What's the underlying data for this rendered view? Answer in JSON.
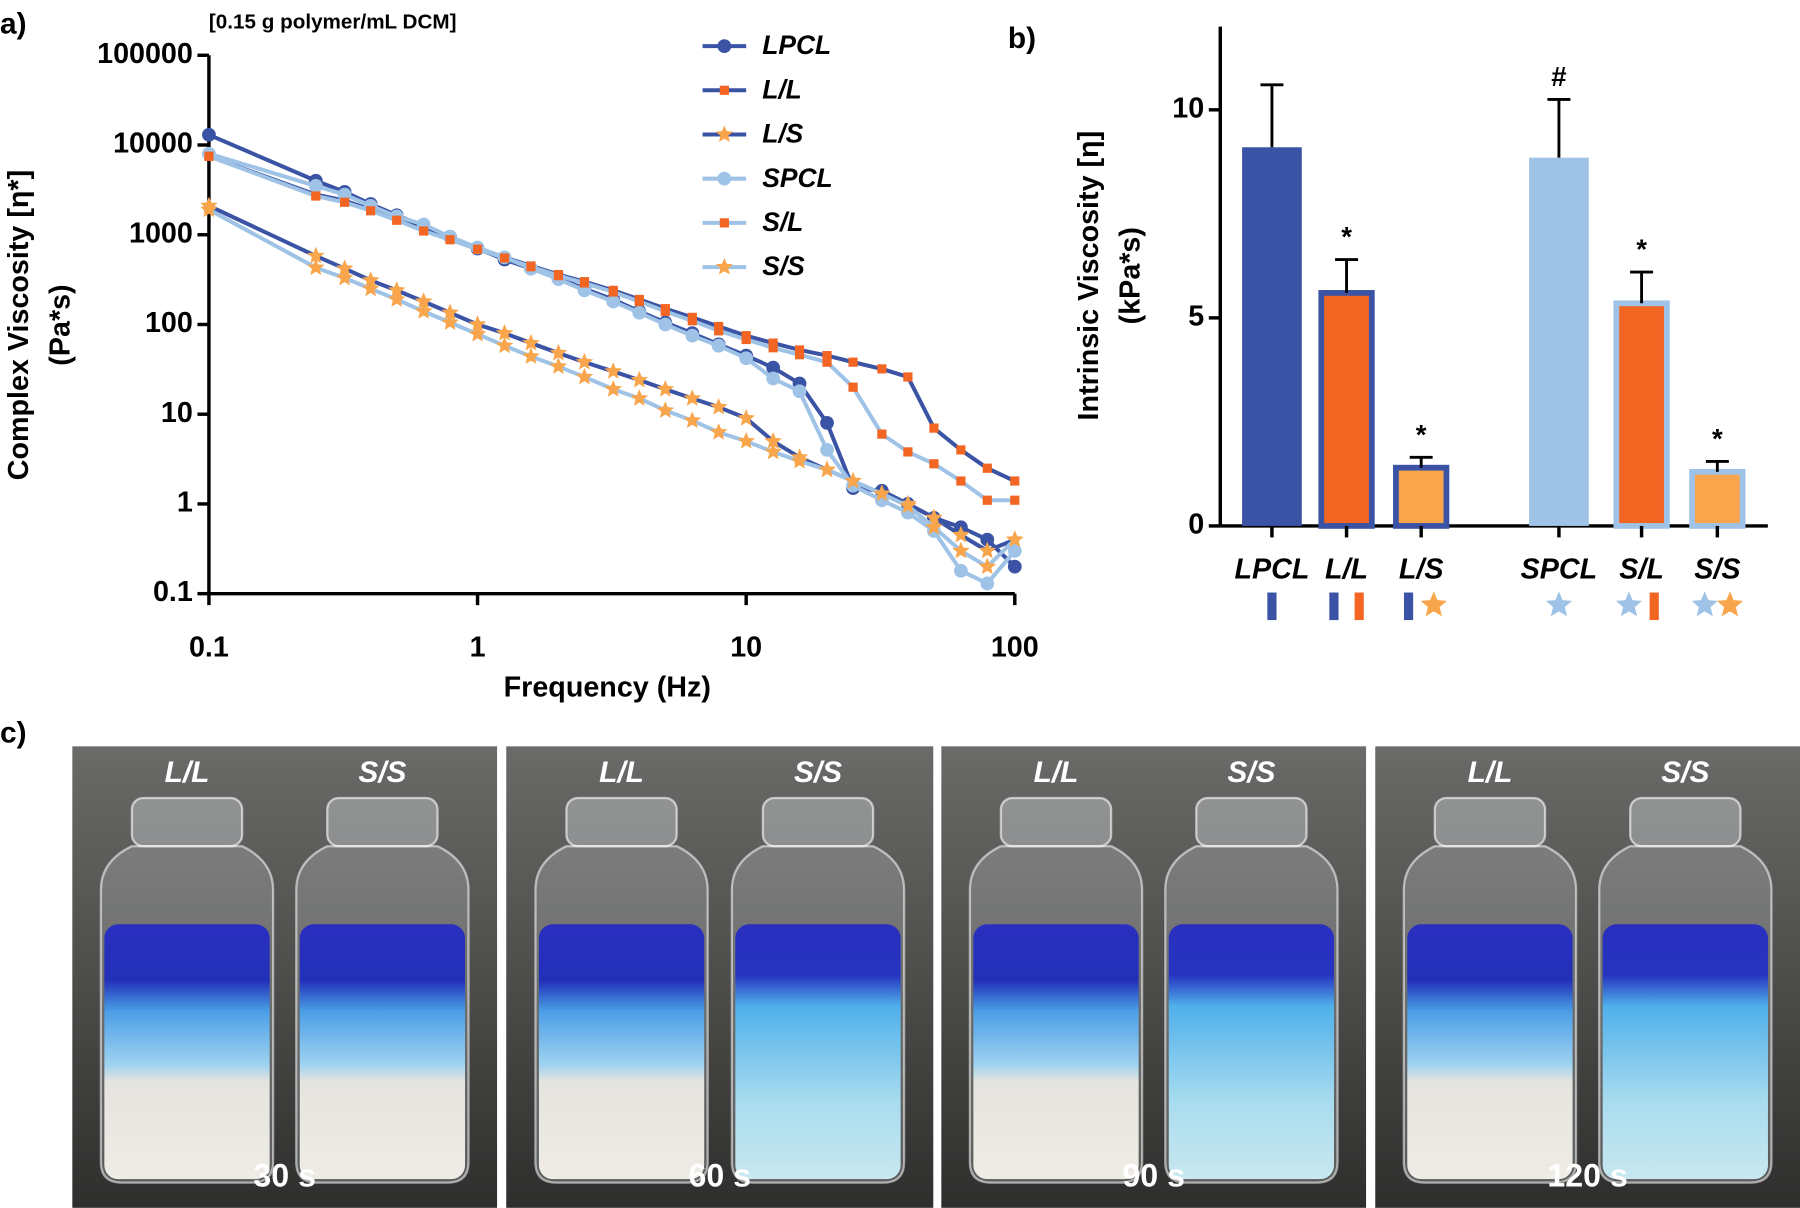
{
  "panel_labels": [
    "a)",
    "b)",
    "c)"
  ],
  "chart_data": [
    {
      "type": "line",
      "log_x": true,
      "log_y": true,
      "annotation": "[0.15 g polymer/mL DCM]",
      "xlabel": "Frequency (Hz)",
      "ylabel": [
        "Complex Viscosity [η*]",
        "(Pa*s)"
      ],
      "xlim": [
        0.1,
        100
      ],
      "ylim": [
        0.1,
        100000
      ],
      "xticks": [
        0.1,
        1,
        10,
        100
      ],
      "yticks": [
        0.1,
        1,
        10,
        100,
        1000,
        10000,
        100000
      ],
      "x": [
        0.1,
        0.25,
        0.32,
        0.4,
        0.5,
        0.63,
        0.79,
        1,
        1.26,
        1.58,
        2,
        2.5,
        3.2,
        4,
        5,
        6.3,
        7.9,
        10,
        12.6,
        15.8,
        20,
        25,
        32,
        40,
        50,
        63,
        79,
        100
      ],
      "series": [
        {
          "name": "LPCL",
          "color": "#3a53a4",
          "marker": "circle",
          "marker_color": "#3a53a4",
          "values": [
            13000,
            4000,
            3000,
            2200,
            1650,
            1250,
            950,
            700,
            530,
            420,
            330,
            250,
            190,
            140,
            105,
            80,
            60,
            45,
            33,
            22,
            8,
            1.5,
            1.4,
            1.0,
            0.7,
            0.55,
            0.4,
            0.2
          ]
        },
        {
          "name": "L/L",
          "color": "#3a53a4",
          "marker": "square",
          "marker_color": "#f26522",
          "values": [
            7500,
            2800,
            2400,
            1900,
            1500,
            1150,
            900,
            700,
            560,
            450,
            360,
            300,
            240,
            190,
            150,
            120,
            95,
            75,
            62,
            52,
            45,
            38,
            32,
            26,
            7,
            4,
            2.5,
            1.8
          ]
        },
        {
          "name": "L/S",
          "color": "#3a53a4",
          "marker": "star",
          "marker_color": "#f8a54b",
          "values": [
            2100,
            580,
            420,
            310,
            240,
            180,
            135,
            100,
            80,
            62,
            48,
            38,
            30,
            24,
            19,
            15,
            12,
            9,
            5,
            3.3,
            2.4,
            1.8,
            1.3,
            1.0,
            0.7,
            0.45,
            0.3,
            0.4
          ]
        },
        {
          "name": "SPCL",
          "color": "#9fc3e6",
          "marker": "circle",
          "marker_color": "#9fc3e6",
          "values": [
            8000,
            3500,
            2800,
            2100,
            1600,
            1300,
            950,
            720,
            560,
            420,
            320,
            240,
            180,
            135,
            100,
            75,
            58,
            42,
            25,
            18,
            4,
            1.6,
            1.1,
            0.8,
            0.5,
            0.18,
            0.13,
            0.3
          ]
        },
        {
          "name": "S/L",
          "color": "#9fc3e6",
          "marker": "square",
          "marker_color": "#f26522",
          "values": [
            7500,
            2700,
            2300,
            1850,
            1450,
            1100,
            880,
            690,
            550,
            440,
            350,
            290,
            230,
            180,
            140,
            110,
            85,
            68,
            55,
            46,
            38,
            20,
            6,
            3.8,
            2.8,
            1.8,
            1.1,
            1.1
          ]
        },
        {
          "name": "S/S",
          "color": "#9fc3e6",
          "marker": "star",
          "marker_color": "#f8a54b",
          "values": [
            1900,
            430,
            330,
            250,
            190,
            140,
            105,
            78,
            58,
            44,
            34,
            26,
            19,
            15,
            11,
            8.5,
            6.3,
            5,
            3.8,
            3,
            2.4,
            1.8,
            1.3,
            0.95,
            0.55,
            0.3,
            0.2,
            0.4
          ]
        }
      ]
    },
    {
      "type": "bar",
      "ylabel": [
        "Intrinsic Viscosity [η]",
        "(kPa*s)"
      ],
      "ylim": [
        0,
        12
      ],
      "yticks": [
        0,
        5,
        10
      ],
      "categories": [
        "LPCL",
        "L/L",
        "L/S",
        "SPCL",
        "S/L",
        "S/S"
      ],
      "values": [
        9.1,
        5.6,
        1.4,
        8.85,
        5.35,
        1.3
      ],
      "errors": [
        1.5,
        0.8,
        0.25,
        1.4,
        0.75,
        0.25
      ],
      "annotations": [
        null,
        "*",
        "*",
        "#",
        "*",
        "*"
      ],
      "colors": [
        "#3a53a4",
        "#f26522",
        "#f8a54b",
        "#9fc3e6",
        "#f26522",
        "#f8a54b"
      ],
      "border_colors": [
        "#3a53a4",
        "#3a53a4",
        "#3a53a4",
        "#9fc3e6",
        "#9fc3e6",
        "#9fc3e6"
      ]
    }
  ],
  "photos": [
    {
      "left": "L/L",
      "right": "S/S",
      "time": "30 s"
    },
    {
      "left": "L/L",
      "right": "S/S",
      "time": "60 s"
    },
    {
      "left": "L/L",
      "right": "S/S",
      "time": "90 s"
    },
    {
      "left": "L/L",
      "right": "S/S",
      "time": "120 s"
    }
  ]
}
